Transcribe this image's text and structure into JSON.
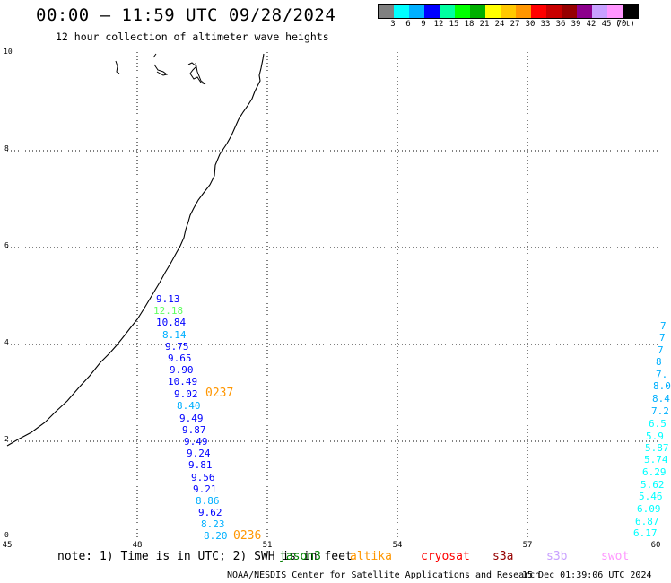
{
  "title": "00:00 – 11:59 UTC 09/28/2024",
  "subtitle": "12 hour collection of altimeter wave heights",
  "color_scale": {
    "colors": [
      "#808080",
      "#00ffff",
      "#00b0ff",
      "#0000ff",
      "#00ffa0",
      "#00ff00",
      "#00b000",
      "#ffff00",
      "#ffc800",
      "#ff9600",
      "#ff0000",
      "#c80000",
      "#960000",
      "#8c008c",
      "#c8a0ff",
      "#ff96ff",
      "#000000"
    ],
    "labels": [
      "3",
      "6",
      "9",
      "12",
      "15",
      "18",
      "21",
      "24",
      "27",
      "30",
      "33",
      "36",
      "39",
      "42",
      "45",
      "70",
      "(ft)"
    ]
  },
  "axes": {
    "y_ticks": [
      "10",
      "8",
      "6",
      "4",
      "2",
      "0"
    ],
    "x_ticks": [
      "45",
      "48",
      "51",
      "54",
      "57",
      "60"
    ]
  },
  "track_values": [
    {
      "text": "9.13",
      "color": "#0000ff"
    },
    {
      "text": "12.18",
      "color": "#60ff60"
    },
    {
      "text": "10.84",
      "color": "#0000ff"
    },
    {
      "text": "8.14",
      "color": "#00b0ff"
    },
    {
      "text": "9.75",
      "color": "#0000ff"
    },
    {
      "text": "9.65",
      "color": "#0000ff"
    },
    {
      "text": "9.90",
      "color": "#0000ff"
    },
    {
      "text": "10.49",
      "color": "#0000ff"
    },
    {
      "text": "9.02",
      "color": "#0000ff"
    },
    {
      "text": "8.40",
      "color": "#00b0ff"
    },
    {
      "text": "9.49",
      "color": "#0000ff"
    },
    {
      "text": "9.87",
      "color": "#0000ff"
    },
    {
      "text": "9.49",
      "color": "#0000ff"
    },
    {
      "text": "9.24",
      "color": "#0000ff"
    },
    {
      "text": "9.81",
      "color": "#0000ff"
    },
    {
      "text": "9.56",
      "color": "#0000ff"
    },
    {
      "text": "9.21",
      "color": "#0000ff"
    },
    {
      "text": "8.86",
      "color": "#00b0ff"
    },
    {
      "text": "9.62",
      "color": "#0000ff"
    },
    {
      "text": "8.23",
      "color": "#00b0ff"
    },
    {
      "text": "8.20",
      "color": "#00b0ff"
    }
  ],
  "time_labels": [
    {
      "text": "0237",
      "color": "#ff9600"
    },
    {
      "text": "0236",
      "color": "#ff9600"
    }
  ],
  "edge_values": [
    {
      "text": "7",
      "color": "#00b0ff"
    },
    {
      "text": "7",
      "color": "#00b0ff"
    },
    {
      "text": "7",
      "color": "#00b0ff"
    },
    {
      "text": "8",
      "color": "#00b0ff"
    },
    {
      "text": "7.",
      "color": "#00b0ff"
    },
    {
      "text": "8.0",
      "color": "#00b0ff"
    },
    {
      "text": "8.4",
      "color": "#00b0ff"
    },
    {
      "text": "7.2",
      "color": "#00b0ff"
    },
    {
      "text": "6.5",
      "color": "#00ffff"
    },
    {
      "text": "5.9",
      "color": "#00ffff"
    },
    {
      "text": "5.87",
      "color": "#00ffff"
    },
    {
      "text": "5.74",
      "color": "#00ffff"
    },
    {
      "text": "6.29",
      "color": "#00ffff"
    },
    {
      "text": "5.62",
      "color": "#00ffff"
    },
    {
      "text": "5.46",
      "color": "#00ffff"
    },
    {
      "text": "6.09",
      "color": "#00ffff"
    },
    {
      "text": "6.87",
      "color": "#00ffff"
    },
    {
      "text": "6.17",
      "color": "#00ffff"
    }
  ],
  "note": "note: 1) Time is in UTC; 2) SWH is in feet",
  "legend": [
    {
      "text": "jason3",
      "color": "#008000"
    },
    {
      "text": "altika",
      "color": "#ff9600"
    },
    {
      "text": "cryosat",
      "color": "#ff0000"
    },
    {
      "text": "s3a",
      "color": "#960000"
    },
    {
      "text": "s3b",
      "color": "#c8a0ff"
    },
    {
      "text": "swot",
      "color": "#ff96ff"
    }
  ],
  "footer": "NOAA/NESDIS Center for Satellite Applications and Research",
  "footer_right": "15 Dec 01:39:06 UTC 2024"
}
